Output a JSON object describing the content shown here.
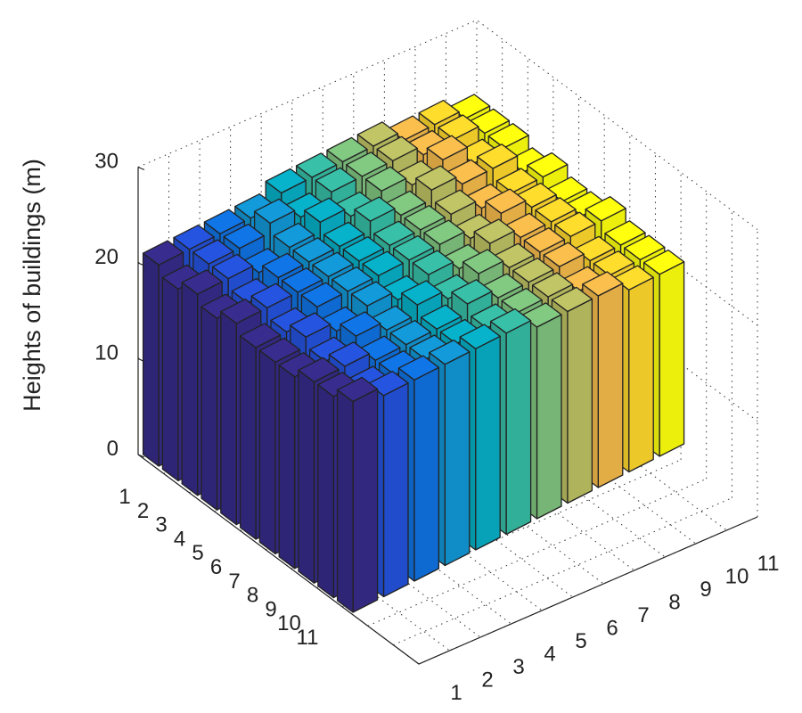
{
  "chart_data": {
    "type": "bar3d",
    "title": "",
    "zlabel": "Heights of buildings (m)",
    "zlim": [
      0,
      30
    ],
    "zticks": [
      "0",
      "10",
      "20",
      "30"
    ],
    "row_ticks": [
      "1",
      "2",
      "3",
      "4",
      "5",
      "6",
      "7",
      "8",
      "9",
      "10",
      "11"
    ],
    "col_ticks": [
      "1",
      "2",
      "3",
      "4",
      "5",
      "6",
      "7",
      "8",
      "9",
      "10",
      "11"
    ],
    "grid": true,
    "colormap": "parula (by column)",
    "column_colors": [
      "#352a87",
      "#2350d6",
      "#0f6fdc",
      "#1193d0",
      "#07aac1",
      "#35b8a0",
      "#7cbf7b",
      "#b8bc60",
      "#efb64a",
      "#f9d22b",
      "#f8fa0d"
    ],
    "values": [
      [
        21,
        21,
        21,
        21,
        22,
        22,
        22,
        22,
        21,
        21,
        20
      ],
      [
        20,
        21,
        21,
        22,
        21,
        22,
        22,
        22,
        21,
        21,
        20
      ],
      [
        21,
        21,
        20,
        21,
        22,
        21,
        22,
        21,
        22,
        20,
        20
      ],
      [
        20,
        20,
        21,
        21,
        21,
        22,
        21,
        22,
        21,
        21,
        19
      ],
      [
        21,
        21,
        21,
        21,
        21,
        21,
        21,
        21,
        20,
        20,
        20
      ],
      [
        20,
        20,
        21,
        21,
        21,
        21,
        21,
        20,
        21,
        20,
        19
      ],
      [
        20,
        21,
        20,
        21,
        20,
        21,
        20,
        21,
        20,
        20,
        19
      ],
      [
        20,
        20,
        21,
        20,
        21,
        20,
        21,
        20,
        20,
        20,
        20
      ],
      [
        21,
        21,
        20,
        20,
        20,
        21,
        20,
        20,
        20,
        19,
        19
      ],
      [
        21,
        20,
        20,
        20,
        20,
        20,
        20,
        20,
        19,
        19,
        19
      ],
      [
        22,
        21,
        21,
        21,
        21,
        21,
        20,
        20,
        20,
        19,
        19
      ]
    ]
  }
}
